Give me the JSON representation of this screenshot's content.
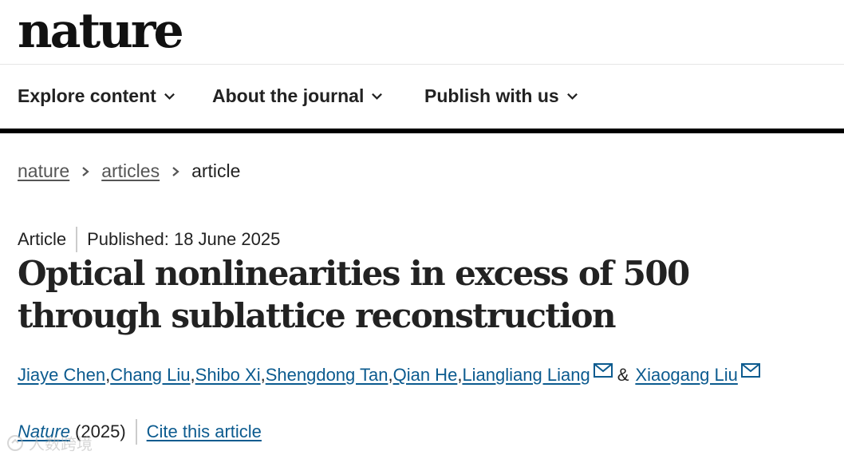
{
  "site": {
    "logo": "nature"
  },
  "nav": {
    "items": [
      {
        "label": "Explore content"
      },
      {
        "label": "About the journal"
      },
      {
        "label": "Publish with us"
      }
    ]
  },
  "breadcrumb": {
    "items": [
      {
        "label": "nature",
        "link": true
      },
      {
        "label": "articles",
        "link": true
      },
      {
        "label": "article",
        "link": false
      }
    ]
  },
  "article": {
    "type": "Article",
    "published": "Published: 18 June 2025",
    "title": "Optical nonlinearities in excess of 500 through sublattice reconstruction",
    "authors": [
      {
        "name": "Jiaye Chen",
        "after": ", "
      },
      {
        "name": "Chang Liu",
        "after": ", "
      },
      {
        "name": "Shibo Xi",
        "after": ", "
      },
      {
        "name": "Shengdong Tan",
        "after": ", "
      },
      {
        "name": "Qian He",
        "after": ", "
      },
      {
        "name": "Liangliang Liang",
        "after": ""
      },
      {
        "name": "Xiaogang Liu",
        "after": ""
      }
    ],
    "ampersand": "&",
    "journal": "Nature",
    "year": "(2025)",
    "cite_label": "Cite this article"
  },
  "watermark": {
    "text": "人数跨境"
  },
  "colors": {
    "link": "#0c5b8f",
    "text": "#222222",
    "rule": "#000000"
  }
}
